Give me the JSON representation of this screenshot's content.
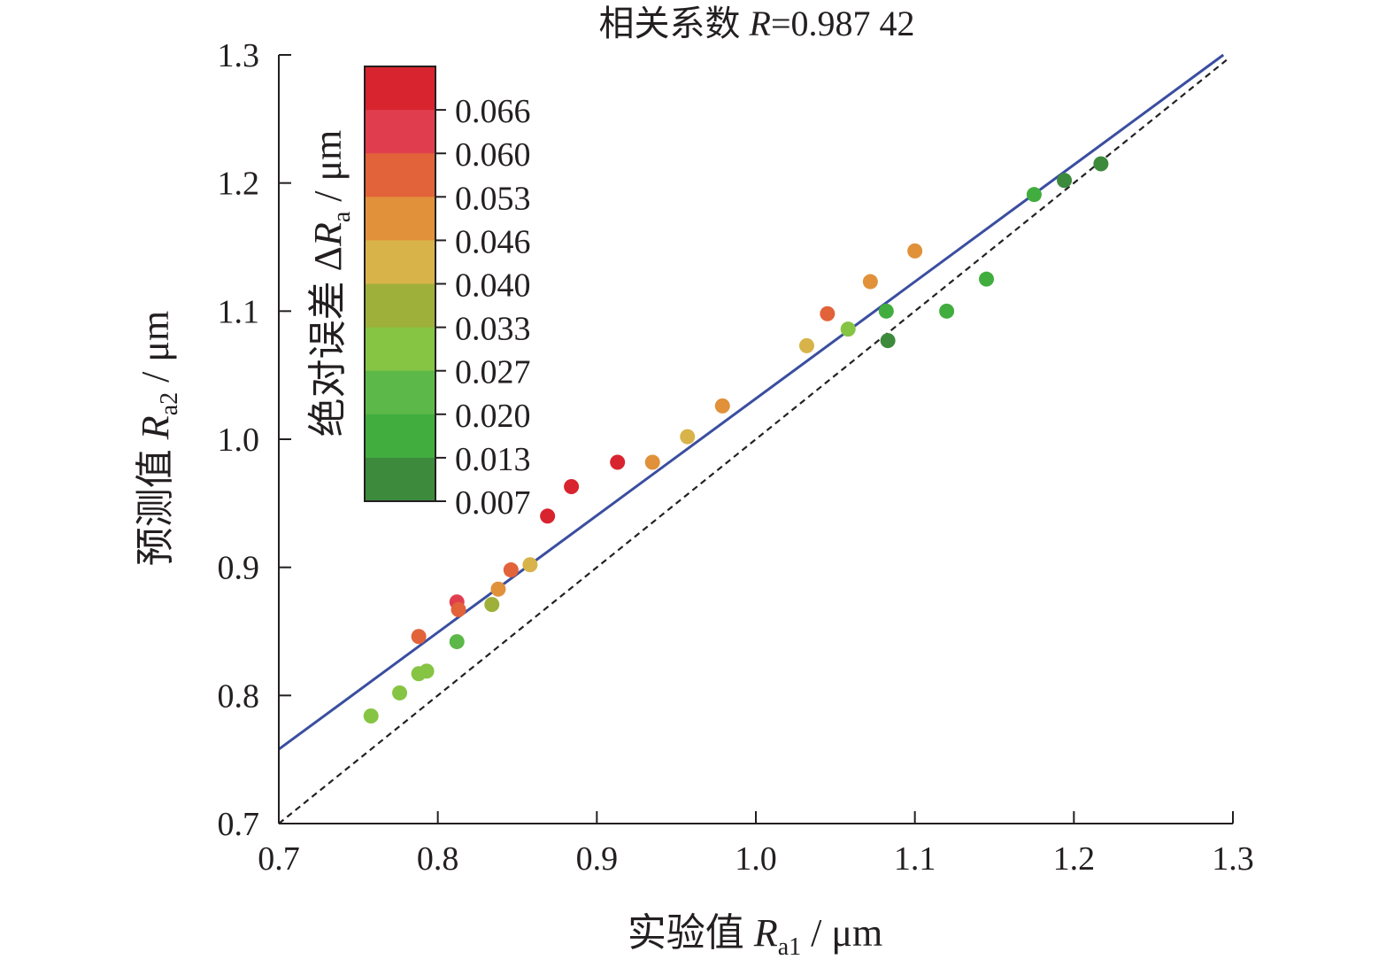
{
  "chart_data": {
    "type": "scatter",
    "title_prefix": "相关系数 ",
    "title_symbol": "R",
    "title_suffix": "=0.987 42",
    "xlabel": {
      "text": "实验值 ",
      "symbol": "R",
      "sub": "a1",
      "unit": " / μm"
    },
    "ylabel": {
      "text": "预测值 ",
      "symbol": "R",
      "sub": "a2",
      "unit": " / μm"
    },
    "xlim": [
      0.7,
      1.3
    ],
    "ylim": [
      0.7,
      1.3
    ],
    "x_ticks": [
      "0.7",
      "0.8",
      "0.9",
      "1.0",
      "1.1",
      "1.2",
      "1.3"
    ],
    "y_ticks": [
      "0.7",
      "0.8",
      "0.9",
      "1.0",
      "1.1",
      "1.2",
      "1.3"
    ],
    "grid": false,
    "fit_line": {
      "x": [
        0.7,
        1.294
      ],
      "y": [
        0.758,
        1.3
      ],
      "color": "#3a4ea0",
      "style": "solid"
    },
    "reference_line": {
      "x": [
        0.7,
        1.296
      ],
      "y": [
        0.7,
        1.296
      ],
      "color": "#222222",
      "style": "dashed"
    },
    "colorbar": {
      "title": {
        "text": "绝对误差 Δ",
        "symbol": "R",
        "sub": "a",
        "unit": " / μm"
      },
      "ticks": [
        "0.066",
        "0.060",
        "0.053",
        "0.046",
        "0.040",
        "0.033",
        "0.027",
        "0.020",
        "0.013",
        "0.007"
      ],
      "colors": [
        "#d8242f",
        "#e03e4e",
        "#e2623a",
        "#e0913a",
        "#d8b34a",
        "#9fb03a",
        "#86c443",
        "#5cb848",
        "#42ad3f",
        "#3d8a3d"
      ]
    },
    "points": [
      {
        "x": 0.758,
        "y": 0.784,
        "color": "#86c443"
      },
      {
        "x": 0.776,
        "y": 0.802,
        "color": "#86c443"
      },
      {
        "x": 0.788,
        "y": 0.817,
        "color": "#86c443"
      },
      {
        "x": 0.793,
        "y": 0.819,
        "color": "#86c443"
      },
      {
        "x": 0.788,
        "y": 0.846,
        "color": "#e2623a"
      },
      {
        "x": 0.812,
        "y": 0.842,
        "color": "#5cb848"
      },
      {
        "x": 0.812,
        "y": 0.873,
        "color": "#e03e4e"
      },
      {
        "x": 0.813,
        "y": 0.867,
        "color": "#e2623a"
      },
      {
        "x": 0.834,
        "y": 0.871,
        "color": "#9fb03a"
      },
      {
        "x": 0.838,
        "y": 0.883,
        "color": "#e0913a"
      },
      {
        "x": 0.846,
        "y": 0.898,
        "color": "#e2623a"
      },
      {
        "x": 0.858,
        "y": 0.902,
        "color": "#d8b34a"
      },
      {
        "x": 0.869,
        "y": 0.94,
        "color": "#d8242f"
      },
      {
        "x": 0.884,
        "y": 0.963,
        "color": "#d8242f"
      },
      {
        "x": 0.913,
        "y": 0.982,
        "color": "#d8242f"
      },
      {
        "x": 0.935,
        "y": 0.982,
        "color": "#e0913a"
      },
      {
        "x": 0.957,
        "y": 1.002,
        "color": "#d8b34a"
      },
      {
        "x": 0.979,
        "y": 1.026,
        "color": "#e0913a"
      },
      {
        "x": 1.032,
        "y": 1.073,
        "color": "#d8b34a"
      },
      {
        "x": 1.045,
        "y": 1.098,
        "color": "#e2623a"
      },
      {
        "x": 1.058,
        "y": 1.086,
        "color": "#86c443"
      },
      {
        "x": 1.072,
        "y": 1.123,
        "color": "#e0913a"
      },
      {
        "x": 1.082,
        "y": 1.1,
        "color": "#42ad3f"
      },
      {
        "x": 1.083,
        "y": 1.077,
        "color": "#3d8a3d"
      },
      {
        "x": 1.1,
        "y": 1.147,
        "color": "#e0913a"
      },
      {
        "x": 1.12,
        "y": 1.1,
        "color": "#42ad3f"
      },
      {
        "x": 1.145,
        "y": 1.125,
        "color": "#42ad3f"
      },
      {
        "x": 1.175,
        "y": 1.191,
        "color": "#42ad3f"
      },
      {
        "x": 1.194,
        "y": 1.202,
        "color": "#3d8a3d"
      },
      {
        "x": 1.217,
        "y": 1.215,
        "color": "#3d8a3d"
      }
    ]
  }
}
